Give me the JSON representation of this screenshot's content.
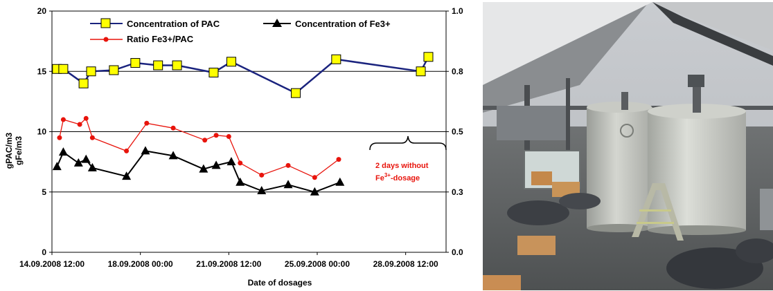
{
  "chart_data": {
    "type": "line",
    "xlabel": "Date of dosages",
    "ylabel_left": "gPAC/m3",
    "ylabel_left_2": "gFe/m3",
    "ylim_left": [
      0,
      20
    ],
    "ylim_right": [
      0.0,
      1.0
    ],
    "left_ticks": [
      "0",
      "5",
      "10",
      "15",
      "20"
    ],
    "right_ticks": [
      "0.0",
      "0.3",
      "0.5",
      "0.8",
      "1.0"
    ],
    "x_ticks": [
      "14.09.2008 12:00",
      "18.09.2008 00:00",
      "21.09.2008 12:00",
      "25.09.2008 00:00",
      "28.09.2008 12:00"
    ],
    "x_unit": "days after 14.09.2008 12:00",
    "xlim": [
      0,
      15.6
    ],
    "grid": "horizontal",
    "legend_position": "top",
    "series": [
      {
        "name": "Concentration of PAC",
        "axis": "left",
        "color": "#1a237e",
        "marker": "square",
        "marker_fill": "#ffff00",
        "x": [
          0.2,
          0.45,
          1.25,
          1.55,
          2.45,
          3.3,
          4.2,
          4.95,
          6.4,
          7.1,
          9.65,
          11.25,
          14.6,
          14.9
        ],
        "values": [
          15.2,
          15.2,
          14.0,
          15.0,
          15.1,
          15.7,
          15.5,
          15.5,
          14.9,
          15.8,
          13.2,
          16.0,
          15.0,
          16.2
        ]
      },
      {
        "name": "Concentration of Fe3+",
        "axis": "left",
        "color": "#000000",
        "marker": "triangle",
        "marker_fill": "#000000",
        "x": [
          0.2,
          0.45,
          1.05,
          1.35,
          1.6,
          2.95,
          3.7,
          4.8,
          6.0,
          6.5,
          7.1,
          7.45,
          8.3,
          9.35,
          10.4,
          11.4
        ],
        "values": [
          7.1,
          8.3,
          7.4,
          7.7,
          7.0,
          6.3,
          8.4,
          8.0,
          6.9,
          7.2,
          7.5,
          5.8,
          5.1,
          5.6,
          5.0,
          5.8
        ]
      },
      {
        "name": "Ratio Fe3+/PAC",
        "axis": "right",
        "color": "#e8140c",
        "marker": "circle",
        "marker_fill": "#e8140c",
        "x": [
          0.3,
          0.45,
          1.1,
          1.35,
          1.6,
          2.95,
          3.75,
          4.8,
          6.05,
          6.5,
          7.0,
          7.45,
          8.3,
          9.35,
          10.4,
          11.35
        ],
        "values": [
          0.475,
          0.55,
          0.53,
          0.555,
          0.475,
          0.42,
          0.535,
          0.515,
          0.465,
          0.485,
          0.48,
          0.37,
          0.32,
          0.36,
          0.31,
          0.385
        ]
      }
    ],
    "annotation": {
      "line1": "2 days without",
      "line2_prefix": "Fe",
      "line2_sup": "3+",
      "line2_suffix": "-dosage"
    }
  }
}
